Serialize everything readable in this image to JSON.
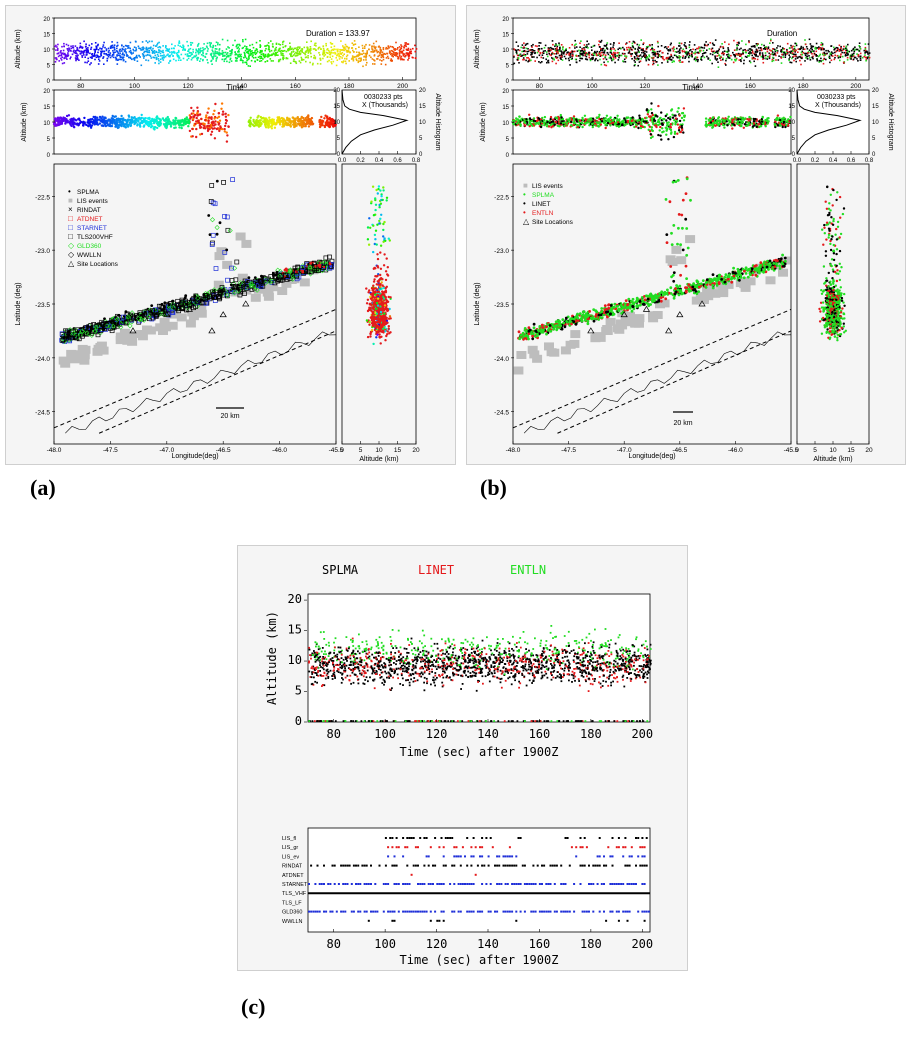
{
  "captions": {
    "a": "(a)",
    "b": "(b)",
    "c": "(c)"
  },
  "colors": {
    "splma": "#000000",
    "linet": "#e41a1c",
    "entln": "#22dd22",
    "blue": "#1f2fd8",
    "lis": "#bdbdbd",
    "bg": "#f5f5f5"
  },
  "panel_a": {
    "timeline": {
      "ylabel": "Altitude (km)",
      "xlabel": "Time",
      "duration": "Duration = 133.97",
      "yticks": [
        "0",
        "5",
        "10",
        "15",
        "20"
      ],
      "xticks": [
        "80",
        "100",
        "120",
        "140",
        "160",
        "180",
        "200"
      ]
    },
    "alt_strip": {
      "ylabel": "Altitude (km)",
      "yticks": [
        "0",
        "5",
        "10",
        "15",
        "20"
      ]
    },
    "histogram": {
      "pts": "0030233 pts",
      "units": "X (Thousands)",
      "side_label": "Altitude Histogram",
      "yticks": [
        "0",
        "5",
        "10",
        "15",
        "20"
      ],
      "xticks": [
        "0.0",
        "0.2",
        "0.4",
        "0.6",
        "0.8"
      ]
    },
    "map": {
      "ylabel": "Latitude (deg)",
      "xlabel": "Longitude(deg)",
      "yticks": [
        "-22.5",
        "-23.0",
        "-23.5",
        "-24.0",
        "-24.5"
      ],
      "xticks": [
        "-48.0",
        "-47.5",
        "-47.0",
        "-46.5",
        "-46.0",
        "-45.5"
      ],
      "scale": "20 km",
      "legend": [
        {
          "symbol": "•",
          "label": "SPLMA",
          "color": "#000000"
        },
        {
          "symbol": "■",
          "label": "LIS events",
          "color": "#bdbdbd"
        },
        {
          "symbol": "×",
          "label": "RINDAT",
          "color": "#000000"
        },
        {
          "symbol": "□",
          "label": "ATDNET",
          "color": "#e41a1c"
        },
        {
          "symbol": "□",
          "label": "STARNET",
          "color": "#1f2fd8"
        },
        {
          "symbol": "□",
          "label": "TLS200VHF",
          "color": "#000000"
        },
        {
          "symbol": "◇",
          "label": "GLD360",
          "color": "#22dd22"
        },
        {
          "symbol": "◇",
          "label": "WWLLN",
          "color": "#000000"
        },
        {
          "symbol": "△",
          "label": "Site Locations",
          "color": "#000000"
        }
      ]
    },
    "side_strip": {
      "xlabel": "Altitude (km)",
      "xticks": [
        "0",
        "5",
        "10",
        "15",
        "20"
      ]
    }
  },
  "panel_b": {
    "timeline": {
      "ylabel": "Altitude (km)",
      "xlabel": "Time",
      "duration": "Duration",
      "yticks": [
        "0",
        "5",
        "10",
        "15",
        "20"
      ],
      "xticks": [
        "80",
        "100",
        "120",
        "140",
        "160",
        "180",
        "200"
      ]
    },
    "alt_strip": {
      "ylabel": "Altitude (km)",
      "yticks": [
        "0",
        "5",
        "10",
        "15",
        "20"
      ]
    },
    "histogram": {
      "pts": "0030233 pts",
      "units": "X (Thousands)",
      "side_label": "Altitude Histogram",
      "yticks": [
        "0",
        "5",
        "10",
        "15",
        "20"
      ],
      "xticks": [
        "0.0",
        "0.2",
        "0.4",
        "0.6",
        "0.8"
      ]
    },
    "map": {
      "ylabel": "Latitude (deg)",
      "xlabel": "Longitude(deg)",
      "yticks": [
        "-22.5",
        "-23.0",
        "-23.5",
        "-24.0",
        "-24.5"
      ],
      "xticks": [
        "-48.0",
        "-47.5",
        "-47.0",
        "-46.5",
        "-46.0",
        "-45.5"
      ],
      "scale": "20 km",
      "legend": [
        {
          "symbol": "■",
          "label": "LIS events",
          "color": "#bdbdbd"
        },
        {
          "symbol": "•",
          "label": "SPLMA",
          "color": "#22dd22"
        },
        {
          "symbol": "•",
          "label": "LINET",
          "color": "#000000"
        },
        {
          "symbol": "•",
          "label": "ENTLN",
          "color": "#e41a1c"
        },
        {
          "symbol": "△",
          "label": "Site Locations",
          "color": "#000000"
        }
      ]
    },
    "side_strip": {
      "xlabel": "Altitude (km)",
      "xticks": [
        "0",
        "5",
        "10",
        "15",
        "20"
      ]
    }
  },
  "panel_c": {
    "legend": [
      {
        "label": "SPLMA",
        "color": "#000000"
      },
      {
        "label": "LINET",
        "color": "#e41a1c"
      },
      {
        "label": "ENTLN",
        "color": "#22dd22"
      }
    ],
    "top": {
      "ylabel": "Altitude (km)",
      "xlabel": "Time (sec) after 1900Z",
      "yticks": [
        "0",
        "5",
        "10",
        "15",
        "20"
      ],
      "xticks": [
        "80",
        "100",
        "120",
        "140",
        "160",
        "180",
        "200"
      ]
    },
    "bottom": {
      "xlabel": "Time (sec) after 1900Z",
      "xticks": [
        "80",
        "100",
        "120",
        "140",
        "160",
        "180",
        "200"
      ],
      "rows": [
        "LIS_fl",
        "LIS_gr",
        "LIS_ev",
        "RINDAT",
        "ATDNET",
        "STARNET",
        "TLS_VHF",
        "TLS_LF",
        "GLD360",
        "WWLLN"
      ]
    }
  },
  "chart_data": [
    {
      "type": "scatter",
      "panel": "a",
      "title": "",
      "xlabel": "Time",
      "ylabel": "Altitude (km)",
      "xlim": [
        70,
        205
      ],
      "ylim": [
        0,
        20
      ],
      "series": [
        {
          "name": "SPLMA",
          "x": [
            70,
            205
          ],
          "y": [
            4,
            18
          ]
        }
      ]
    },
    {
      "type": "line",
      "panel": "a/b",
      "title": "",
      "xlabel": "X (Thousands)",
      "ylabel": "Altitude Histogram",
      "xlim": [
        0.0,
        0.8
      ],
      "ylim": [
        0,
        20
      ],
      "series": [
        {
          "name": "",
          "x": [
            0.0,
            0.04,
            0.1,
            0.2,
            0.35,
            0.55,
            0.7,
            0.45,
            0.2,
            0.08,
            0.03,
            0.01,
            0.0
          ],
          "y": [
            0,
            2,
            4,
            6,
            7.5,
            9,
            10.5,
            12,
            13,
            14,
            15,
            17,
            20
          ]
        }
      ]
    },
    {
      "type": "scatter",
      "panel": "c",
      "title": "",
      "xlabel": "Time (sec) after 1900Z",
      "ylabel": "Altitude (km)",
      "xlim": [
        70,
        203
      ],
      "ylim": [
        0,
        20
      ],
      "series": [
        {
          "name": "SPLMA",
          "x": [
            70,
            203
          ],
          "y": [
            4,
            18
          ]
        },
        {
          "name": "LINET",
          "x": [
            70,
            203
          ],
          "y": [
            5,
            14
          ]
        },
        {
          "name": "ENTLN",
          "x": [
            70,
            203
          ],
          "y": [
            8,
            20
          ]
        }
      ]
    },
    {
      "type": "scatter",
      "panel": "c-bottom",
      "title": "",
      "xlabel": "Time (sec) after 1900Z",
      "xlim": [
        70,
        203
      ],
      "categories": [
        "LIS_fl",
        "LIS_gr",
        "LIS_ev",
        "RINDAT",
        "ATDNET",
        "STARNET",
        "TLS_VHF",
        "TLS_LF",
        "GLD360",
        "WWLLN"
      ]
    }
  ]
}
